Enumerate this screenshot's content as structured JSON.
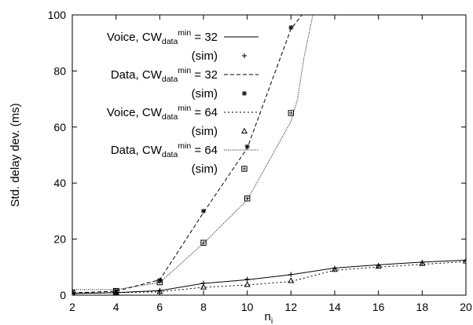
{
  "chart_data": {
    "type": "line",
    "xlabel": "n",
    "xlabel_sub": "i",
    "ylabel": "Std. delay dev. (ms)",
    "xlim": [
      2,
      20
    ],
    "ylim": [
      0,
      100
    ],
    "xticks": [
      "2",
      "4",
      "6",
      "8",
      "10",
      "12",
      "14",
      "16",
      "18",
      "20"
    ],
    "yticks": [
      "0",
      "20",
      "40",
      "60",
      "80",
      "100"
    ],
    "grid": false,
    "legend_position": "top-left",
    "series": [
      {
        "name": "Voice, CW_data^min = 32",
        "legend_parts": [
          "Voice, CW",
          "data",
          "min",
          " = 32"
        ],
        "style": "solid",
        "x": [
          2,
          4,
          6,
          8,
          10,
          12,
          14,
          16,
          18,
          20
        ],
        "y": [
          0.6,
          0.9,
          1.6,
          4.2,
          5.5,
          7.3,
          9.7,
          10.8,
          11.8,
          12.5
        ]
      },
      {
        "name": "(sim)",
        "legend_parts": [
          "(sim)"
        ],
        "style": "marker",
        "marker": "plus",
        "x": [
          2,
          4,
          6,
          8,
          10,
          12,
          14,
          16,
          18,
          20
        ],
        "y": [
          0.6,
          1.0,
          1.7,
          4.3,
          5.7,
          7.4,
          9.6,
          10.6,
          11.7,
          12.3
        ]
      },
      {
        "name": "Data, CW_data^min = 32",
        "legend_parts": [
          "Data, CW",
          "data",
          "min",
          " = 32"
        ],
        "style": "dashed",
        "x": [
          2,
          4,
          6,
          8,
          10,
          12,
          12.5
        ],
        "y": [
          0.8,
          1.4,
          5.5,
          29.5,
          52.5,
          95.0,
          100
        ]
      },
      {
        "name": "(sim)",
        "legend_parts": [
          "(sim)"
        ],
        "style": "marker",
        "marker": "star",
        "x": [
          2,
          4,
          6,
          8,
          10,
          12
        ],
        "y": [
          0.9,
          1.5,
          5.3,
          30.0,
          53.0,
          95.5
        ]
      },
      {
        "name": "Voice, CW_data^min = 64",
        "legend_parts": [
          "Voice, CW",
          "data",
          "min",
          " = 64"
        ],
        "style": "dotted",
        "x": [
          2,
          4,
          6,
          8,
          10,
          12,
          14,
          16,
          18,
          20
        ],
        "y": [
          0.7,
          0.9,
          1.2,
          2.8,
          3.6,
          4.9,
          8.9,
          10.0,
          11.0,
          12.0
        ]
      },
      {
        "name": "(sim)",
        "legend_parts": [
          "(sim)"
        ],
        "style": "marker",
        "marker": "triangle",
        "x": [
          2,
          4,
          6,
          8,
          10,
          12,
          14,
          16,
          18,
          20
        ],
        "y": [
          0.8,
          1.0,
          1.3,
          2.9,
          3.8,
          5.2,
          9.2,
          10.3,
          11.3,
          12.2
        ]
      },
      {
        "name": "Data, CW_data^min = 64",
        "legend_parts": [
          "Data, CW",
          "data",
          "min",
          " = 64"
        ],
        "style": "dense-dotted",
        "x": [
          2,
          4,
          6,
          8,
          10,
          12,
          12.3,
          12.6,
          13.0
        ],
        "y": [
          2.0,
          2.0,
          4.5,
          18.5,
          34.0,
          62.0,
          70,
          85,
          100
        ]
      },
      {
        "name": "(sim)",
        "legend_parts": [
          "(sim)"
        ],
        "style": "marker",
        "marker": "square",
        "x": [
          2,
          4,
          6,
          8,
          10,
          12
        ],
        "y": [
          0.9,
          1.5,
          4.6,
          18.7,
          34.5,
          65.0
        ]
      }
    ]
  }
}
